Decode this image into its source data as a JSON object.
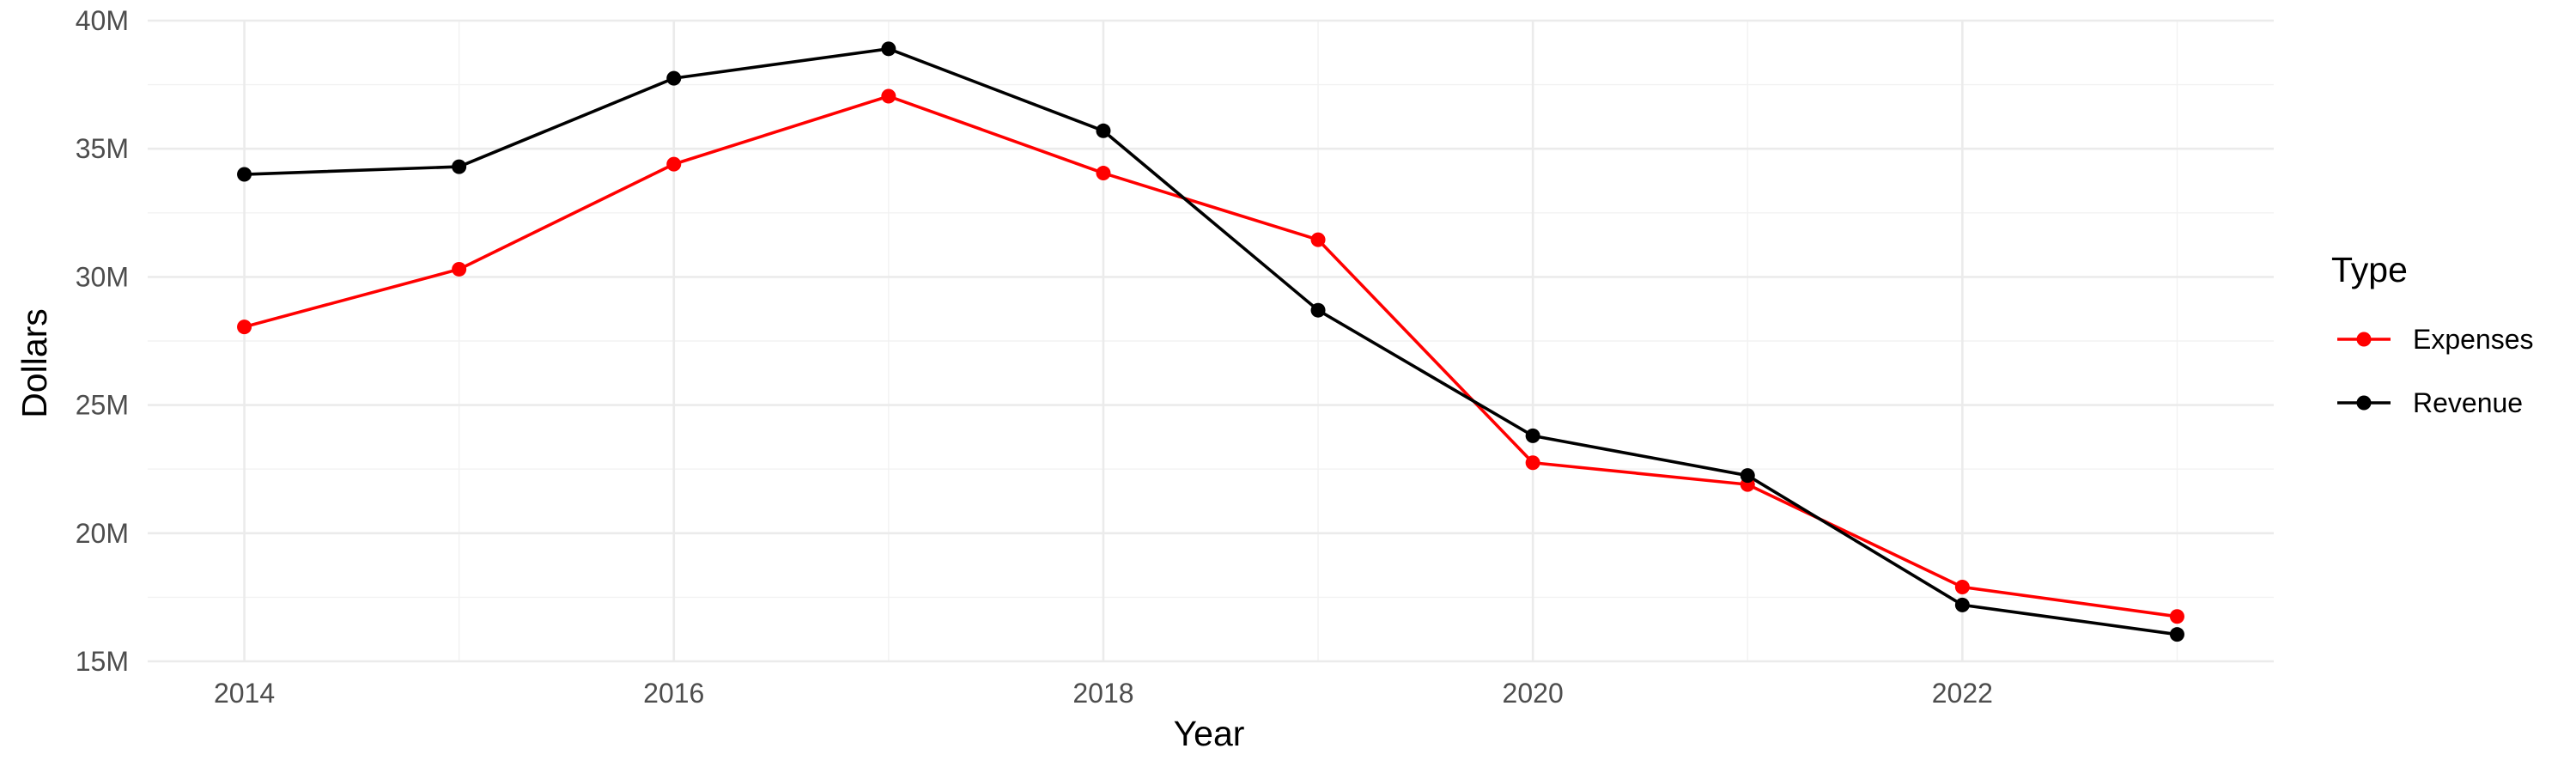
{
  "chart_data": {
    "type": "line",
    "xlabel": "Year",
    "ylabel": "Dollars",
    "x": [
      2014,
      2015,
      2016,
      2017,
      2018,
      2019,
      2020,
      2021,
      2022,
      2023
    ],
    "xlim": [
      2013.55,
      2023.45
    ],
    "ylim": [
      15,
      40
    ],
    "x_ticks": [
      2014,
      2016,
      2018,
      2020,
      2022
    ],
    "y_ticks": [
      15,
      20,
      25,
      30,
      35,
      40
    ],
    "y_tick_labels": [
      "15M",
      "20M",
      "25M",
      "30M",
      "35M",
      "40M"
    ],
    "grid": true,
    "legend": {
      "title": "Type",
      "placement": "right"
    },
    "series": [
      {
        "name": "Expenses",
        "color": "#ff0000",
        "values": [
          28.05,
          30.3,
          34.4,
          37.05,
          34.05,
          31.45,
          22.75,
          21.9,
          17.9,
          16.75
        ]
      },
      {
        "name": "Revenue",
        "color": "#000000",
        "values": [
          34.0,
          34.3,
          37.75,
          38.9,
          35.7,
          28.7,
          23.8,
          22.25,
          17.2,
          16.05
        ]
      }
    ]
  }
}
